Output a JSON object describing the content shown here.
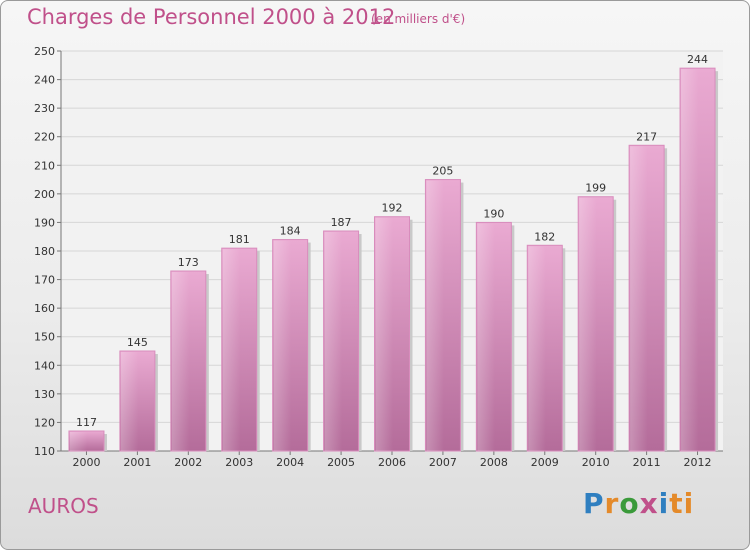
{
  "header": {
    "title": "Charges de Personnel 2000 à 2012",
    "subtitle": "(en milliers d'€)"
  },
  "footer": {
    "place": "AUROS",
    "logo_letters": [
      "P",
      "r",
      "o",
      "x",
      "i",
      "ti"
    ]
  },
  "colors": {
    "accent": "#c0508a",
    "bar_light": "#e9a8d0",
    "bar_dark": "#b86e9c"
  },
  "chart_data": {
    "type": "bar",
    "title": "Charges de Personnel 2000 à 2012",
    "subtitle": "(en milliers d'€)",
    "categories": [
      "2000",
      "2001",
      "2002",
      "2003",
      "2004",
      "2005",
      "2006",
      "2007",
      "2008",
      "2009",
      "2010",
      "2011",
      "2012"
    ],
    "values": [
      117,
      145,
      173,
      181,
      184,
      187,
      192,
      205,
      190,
      182,
      199,
      217,
      244
    ],
    "ylim": [
      110,
      250
    ],
    "yticks": [
      110,
      120,
      130,
      140,
      150,
      160,
      170,
      180,
      190,
      200,
      210,
      220,
      230,
      240,
      250
    ],
    "grid": true,
    "data_labels": true
  }
}
